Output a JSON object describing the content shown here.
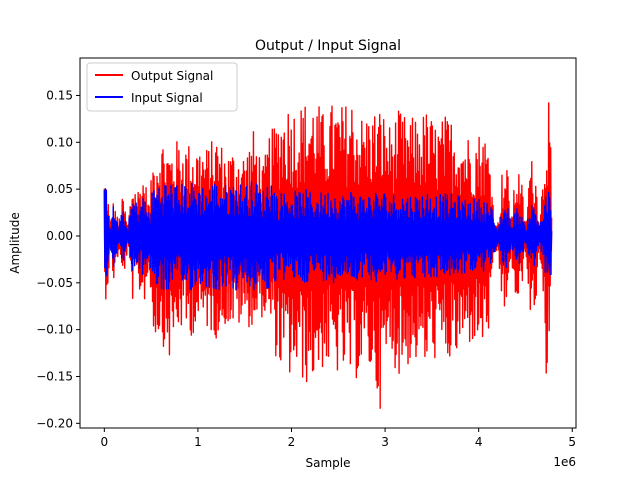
{
  "chart_data": {
    "type": "line",
    "title": "Output / Input Signal",
    "xlabel": "Sample",
    "ylabel": "Amplitude",
    "x_offset_label": "1e6",
    "xlim": [
      -260000,
      5040000
    ],
    "ylim": [
      -0.205,
      0.19
    ],
    "x_ticks": [
      0,
      1000000,
      2000000,
      3000000,
      4000000,
      5000000
    ],
    "x_tick_labels": [
      "0",
      "1",
      "2",
      "3",
      "4",
      "5"
    ],
    "y_ticks": [
      -0.2,
      -0.15,
      -0.1,
      -0.05,
      0.0,
      0.05,
      0.1,
      0.15
    ],
    "y_tick_labels": [
      "−0.20",
      "−0.15",
      "−0.10",
      "−0.05",
      "0.00",
      "0.05",
      "0.10",
      "0.15"
    ],
    "grid": false,
    "legend_position": "top-left",
    "series": [
      {
        "name": "Output Signal",
        "color": "#ff0000",
        "envelope": {
          "x": [
            0,
            30000,
            60000,
            100000,
            150000,
            200000,
            250000,
            300000,
            350000,
            420000,
            480000,
            520000,
            600000,
            700000,
            800000,
            900000,
            1000000,
            1100000,
            1200000,
            1300000,
            1400000,
            1500000,
            1600000,
            1700000,
            1760000,
            1800000,
            1850000,
            1950000,
            2050000,
            2150000,
            2250000,
            2350000,
            2450000,
            2550000,
            2650000,
            2750000,
            2850000,
            2950000,
            3050000,
            3150000,
            3250000,
            3350000,
            3450000,
            3550000,
            3650000,
            3750000,
            3850000,
            3950000,
            4050000,
            4130000,
            4160000,
            4200000,
            4250000,
            4300000,
            4350000,
            4400000,
            4450000,
            4500000,
            4550000,
            4600000,
            4650000,
            4690000,
            4720000,
            4760000,
            4780000
          ],
          "max": [
            0.065,
            0.06,
            0.015,
            0.04,
            0.015,
            0.045,
            0.01,
            0.065,
            0.05,
            0.07,
            0.035,
            0.085,
            0.11,
            0.095,
            0.105,
            0.1,
            0.1,
            0.095,
            0.11,
            0.09,
            0.095,
            0.09,
            0.115,
            0.075,
            0.11,
            0.115,
            0.13,
            0.145,
            0.14,
            0.145,
            0.15,
            0.13,
            0.145,
            0.14,
            0.15,
            0.13,
            0.135,
            0.14,
            0.12,
            0.135,
            0.125,
            0.13,
            0.135,
            0.12,
            0.13,
            0.125,
            0.11,
            0.11,
            0.115,
            0.09,
            0.025,
            0.01,
            0.07,
            0.08,
            0.02,
            0.075,
            0.07,
            0.01,
            0.085,
            0.08,
            0.02,
            0.07,
            0.135,
            0.16,
            0.02
          ],
          "min": [
            -0.07,
            -0.065,
            -0.02,
            -0.05,
            -0.02,
            -0.05,
            -0.015,
            -0.07,
            -0.055,
            -0.075,
            -0.04,
            -0.105,
            -0.11,
            -0.135,
            -0.1,
            -0.11,
            -0.1,
            -0.1,
            -0.11,
            -0.095,
            -0.1,
            -0.095,
            -0.1,
            -0.085,
            -0.1,
            -0.11,
            -0.14,
            -0.155,
            -0.15,
            -0.16,
            -0.155,
            -0.14,
            -0.15,
            -0.15,
            -0.16,
            -0.145,
            -0.15,
            -0.185,
            -0.13,
            -0.15,
            -0.14,
            -0.135,
            -0.145,
            -0.13,
            -0.14,
            -0.135,
            -0.12,
            -0.115,
            -0.12,
            -0.1,
            -0.03,
            -0.015,
            -0.075,
            -0.085,
            -0.025,
            -0.08,
            -0.075,
            -0.015,
            -0.09,
            -0.085,
            -0.025,
            -0.08,
            -0.16,
            -0.125,
            -0.02
          ]
        }
      },
      {
        "name": "Input Signal",
        "color": "#0000ff",
        "envelope": {
          "x": [
            0,
            30000,
            60000,
            100000,
            150000,
            200000,
            250000,
            300000,
            350000,
            420000,
            480000,
            520000,
            600000,
            700000,
            800000,
            900000,
            1000000,
            1100000,
            1200000,
            1300000,
            1400000,
            1500000,
            1600000,
            1700000,
            1760000,
            1800000,
            1850000,
            1950000,
            2050000,
            2150000,
            2250000,
            2350000,
            2450000,
            2550000,
            2650000,
            2750000,
            2850000,
            2950000,
            3050000,
            3150000,
            3250000,
            3350000,
            3450000,
            3550000,
            3650000,
            3750000,
            3850000,
            3950000,
            4050000,
            4130000,
            4160000,
            4200000,
            4250000,
            4300000,
            4350000,
            4400000,
            4450000,
            4500000,
            4550000,
            4600000,
            4650000,
            4690000,
            4720000,
            4760000,
            4780000
          ],
          "max": [
            0.05,
            0.06,
            0.01,
            0.035,
            0.01,
            0.03,
            0.008,
            0.045,
            0.035,
            0.045,
            0.025,
            0.055,
            0.06,
            0.06,
            0.055,
            0.06,
            0.055,
            0.055,
            0.06,
            0.055,
            0.06,
            0.055,
            0.06,
            0.05,
            0.065,
            0.06,
            0.045,
            0.05,
            0.048,
            0.05,
            0.045,
            0.048,
            0.05,
            0.045,
            0.05,
            0.045,
            0.047,
            0.05,
            0.045,
            0.047,
            0.045,
            0.045,
            0.048,
            0.045,
            0.045,
            0.045,
            0.04,
            0.04,
            0.04,
            0.035,
            0.02,
            0.008,
            0.03,
            0.035,
            0.015,
            0.03,
            0.03,
            0.008,
            0.035,
            0.035,
            0.015,
            0.03,
            0.045,
            0.05,
            0.01
          ],
          "min": [
            -0.045,
            -0.05,
            -0.01,
            -0.035,
            -0.01,
            -0.03,
            -0.008,
            -0.045,
            -0.035,
            -0.045,
            -0.025,
            -0.055,
            -0.06,
            -0.06,
            -0.055,
            -0.06,
            -0.055,
            -0.055,
            -0.06,
            -0.055,
            -0.06,
            -0.055,
            -0.06,
            -0.05,
            -0.065,
            -0.06,
            -0.045,
            -0.05,
            -0.048,
            -0.05,
            -0.045,
            -0.048,
            -0.05,
            -0.045,
            -0.05,
            -0.045,
            -0.047,
            -0.05,
            -0.045,
            -0.047,
            -0.045,
            -0.045,
            -0.048,
            -0.045,
            -0.045,
            -0.045,
            -0.04,
            -0.04,
            -0.04,
            -0.035,
            -0.02,
            -0.008,
            -0.03,
            -0.035,
            -0.015,
            -0.03,
            -0.03,
            -0.008,
            -0.035,
            -0.035,
            -0.015,
            -0.03,
            -0.045,
            -0.05,
            -0.01
          ]
        }
      }
    ]
  }
}
